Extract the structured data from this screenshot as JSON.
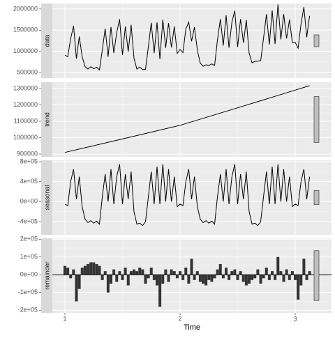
{
  "chart_data": {
    "type": "line",
    "x_label": "Time",
    "xlim": [
      0.891,
      3.315
    ],
    "xticks": [
      1,
      2,
      3
    ],
    "grid": true,
    "x": [
      1.0,
      1.025,
      1.05,
      1.075,
      1.1,
      1.125,
      1.15,
      1.175,
      1.2,
      1.225,
      1.25,
      1.275,
      1.3,
      1.325,
      1.35,
      1.375,
      1.4,
      1.425,
      1.45,
      1.475,
      1.5,
      1.525,
      1.55,
      1.575,
      1.6,
      1.625,
      1.65,
      1.675,
      1.7,
      1.725,
      1.75,
      1.775,
      1.8,
      1.825,
      1.85,
      1.875,
      1.9,
      1.925,
      1.95,
      1.975,
      2.0,
      2.025,
      2.05,
      2.075,
      2.1,
      2.125,
      2.15,
      2.175,
      2.2,
      2.225,
      2.25,
      2.275,
      2.3,
      2.325,
      2.35,
      2.375,
      2.4,
      2.425,
      2.45,
      2.475,
      2.5,
      2.525,
      2.55,
      2.575,
      2.6,
      2.625,
      2.65,
      2.675,
      2.7,
      2.725,
      2.75,
      2.775,
      2.8,
      2.825,
      2.85,
      2.875,
      2.9,
      2.925,
      2.95,
      2.975,
      3.0,
      3.025,
      3.05,
      3.075,
      3.1,
      3.125
    ],
    "panels": [
      {
        "name": "data",
        "style": "line",
        "ylim": [
          370000,
          2130000
        ],
        "yticks": [
          500000,
          1000000,
          1500000,
          2000000
        ],
        "values": [
          910000,
          874000,
          1298000,
          1602000,
          827000,
          1351000,
          875000,
          639000,
          583000,
          637000,
          591000,
          625000,
          560000,
          1034000,
          1538000,
          872000,
          1576000,
          960000,
          1444000,
          1758000,
          913000,
          1587000,
          991000,
          1625000,
          839000,
          583000,
          627000,
          571000,
          576000,
          1110000,
          1674000,
          958000,
          1682000,
          816000,
          1750000,
          1084000,
          1669000,
          1093000,
          1587000,
          951000,
          1045000,
          970000,
          1526000,
          1691000,
          1237000,
          1572000,
          1027000,
          723000,
          648000,
          683000,
          669000,
          704000,
          670000,
          1275000,
          1760000,
          1136000,
          1851000,
          1087000,
          1692000,
          1957000,
          1103000,
          1758000,
          1203000,
          1739000,
          954000,
          730000,
          765000,
          770000,
          776000,
          1311000,
          1876000,
          1162000,
          1967000,
          1173000,
          2108000,
          1283000,
          1879000,
          1304000,
          1749000,
          1205000,
          1210000,
          1075000,
          1641000,
          2046000,
          1332000,
          1837000
        ]
      },
      {
        "name": "trend",
        "style": "line",
        "ylim": [
          883000,
          1338000
        ],
        "yticks": [
          900000,
          1000000,
          1100000,
          1200000,
          1300000
        ],
        "x": [
          1,
          1.5,
          2,
          2.5,
          3,
          3.125
        ],
        "values": [
          910000,
          992000,
          1075000,
          1182000,
          1290000,
          1317000
        ]
      },
      {
        "name": "seasonal",
        "style": "line",
        "ylim": [
          -665000,
          828000
        ],
        "yticks": [
          {
            "value": -400000,
            "label": "-4e+05"
          },
          {
            "value": 0,
            "label": "0e+00"
          },
          {
            "value": 400000,
            "label": "4e+05"
          },
          {
            "value": 800000,
            "label": "8e+05"
          }
        ],
        "values": [
          -50000,
          -80000,
          400000,
          650000,
          50000,
          500000,
          -100000,
          -350000,
          -420000,
          -380000,
          -430000,
          -390000,
          -450000,
          100000,
          550000,
          0,
          650000,
          -50000,
          500000,
          750000,
          -50000,
          550000,
          50000,
          600000,
          -200000,
          -450000,
          -430000,
          -480000,
          -400000,
          100000,
          600000,
          -50000,
          700000,
          -50000,
          750000,
          0,
          650000,
          0,
          500000,
          -100000,
          -50000,
          -80000,
          400000,
          650000,
          50000,
          500000,
          -100000,
          -350000,
          -420000,
          -380000,
          -430000,
          -390000,
          -450000,
          100000,
          550000,
          0,
          650000,
          -50000,
          500000,
          750000,
          -50000,
          550000,
          50000,
          600000,
          -200000,
          -450000,
          -430000,
          -480000,
          -400000,
          100000,
          600000,
          -50000,
          700000,
          -50000,
          750000,
          0,
          650000,
          0,
          500000,
          -100000,
          -50000,
          -80000,
          400000,
          650000,
          50000,
          500000
        ]
      },
      {
        "name": "remainder",
        "style": "bar",
        "ylim": [
          -215000,
          205000
        ],
        "yticks": [
          {
            "value": -200000,
            "label": "-2e+05"
          },
          {
            "value": -100000,
            "label": "-1e+05"
          },
          {
            "value": 0,
            "label": "0e+00"
          },
          {
            "value": 100000,
            "label": "1e+05"
          },
          {
            "value": 200000,
            "label": "2e+05"
          }
        ],
        "values": [
          50000,
          40000,
          -20000,
          30000,
          -150000,
          -80000,
          40000,
          50000,
          60000,
          70000,
          70000,
          60000,
          50000,
          -30000,
          20000,
          -100000,
          -50000,
          30000,
          -40000,
          20000,
          -30000,
          40000,
          -60000,
          20000,
          30000,
          20000,
          40000,
          30000,
          -50000,
          -20000,
          40000,
          -30000,
          -60000,
          -180000,
          -50000,
          30000,
          -40000,
          30000,
          20000,
          -20000,
          20000,
          -30000,
          40000,
          -50000,
          90000,
          -30000,
          20000,
          -40000,
          -50000,
          -60000,
          -30000,
          -40000,
          -20000,
          30000,
          60000,
          -20000,
          40000,
          -30000,
          20000,
          30000,
          -30000,
          20000,
          -40000,
          -60000,
          -50000,
          -30000,
          -20000,
          30000,
          -50000,
          -20000,
          40000,
          -30000,
          20000,
          -30000,
          100000,
          20000,
          -40000,
          30000,
          -30000,
          20000,
          -30000,
          -140000,
          -60000,
          90000,
          -30000,
          20000
        ]
      }
    ]
  }
}
